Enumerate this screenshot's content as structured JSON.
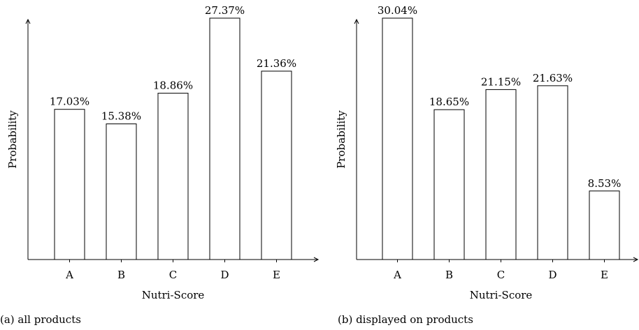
{
  "chart_data": [
    {
      "type": "bar",
      "caption": "(a) all products",
      "xlabel": "Nutri-Score",
      "ylabel": "Probability",
      "categories": [
        "A",
        "B",
        "C",
        "D",
        "E"
      ],
      "values": [
        17.03,
        15.38,
        18.86,
        27.37,
        21.36
      ],
      "value_labels": [
        "17.03%",
        "15.38%",
        "18.86%",
        "27.37%",
        "21.36%"
      ],
      "ylim": [
        0,
        27.37
      ],
      "grid": false,
      "bar_fill": "#ffffff",
      "bar_stroke": "#000000"
    },
    {
      "type": "bar",
      "caption": "(b) displayed on products",
      "xlabel": "Nutri-Score",
      "ylabel": "Probability",
      "categories": [
        "A",
        "B",
        "C",
        "D",
        "E"
      ],
      "values": [
        30.04,
        18.65,
        21.15,
        21.63,
        8.53
      ],
      "value_labels": [
        "30.04%",
        "18.65%",
        "21.15%",
        "21.63%",
        "8.53%"
      ],
      "ylim": [
        0,
        30.04
      ],
      "grid": false,
      "bar_fill": "#ffffff",
      "bar_stroke": "#000000"
    }
  ]
}
